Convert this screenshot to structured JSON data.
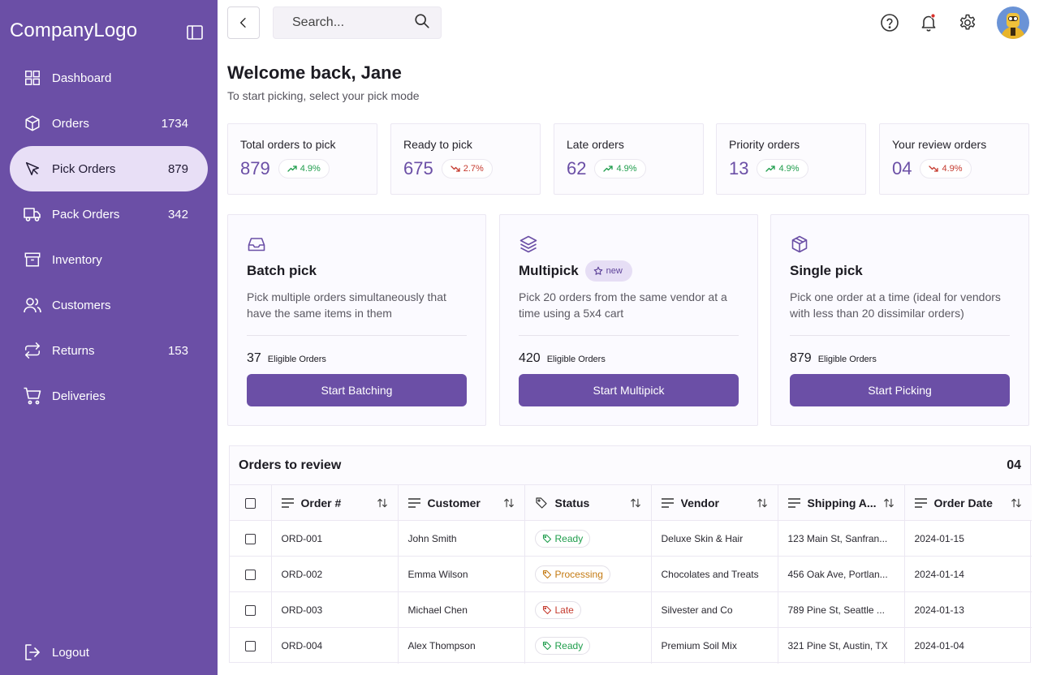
{
  "sidebar": {
    "brand": "CompanyLogo",
    "items": [
      {
        "label": "Dashboard",
        "count": "",
        "icon": "grid-icon"
      },
      {
        "label": "Orders",
        "count": "1734",
        "icon": "box-icon"
      },
      {
        "label": "Pick Orders",
        "count": "879",
        "icon": "cursor-icon",
        "active": true
      },
      {
        "label": "Pack Orders",
        "count": "342",
        "icon": "truck-icon"
      },
      {
        "label": "Inventory",
        "count": "",
        "icon": "archive-icon"
      },
      {
        "label": "Customers",
        "count": "",
        "icon": "users-icon"
      },
      {
        "label": "Returns",
        "count": "153",
        "icon": "repeat-icon"
      },
      {
        "label": "Deliveries",
        "count": "",
        "icon": "cart-icon"
      }
    ],
    "logout": "Logout"
  },
  "search": {
    "placeholder": "Search..."
  },
  "header": {
    "title": "Welcome back, Jane",
    "subtitle": "To start picking, select your pick mode"
  },
  "stats": [
    {
      "title": "Total orders to pick",
      "value": "879",
      "trend": "4.9%",
      "direction": "up"
    },
    {
      "title": "Ready to pick",
      "value": "675",
      "trend": "2.7%",
      "direction": "down"
    },
    {
      "title": "Late orders",
      "value": "62",
      "trend": "4.9%",
      "direction": "up"
    },
    {
      "title": "Priority orders",
      "value": "13",
      "trend": "4.9%",
      "direction": "up"
    },
    {
      "title": "Your review orders",
      "value": "04",
      "trend": "4.9%",
      "direction": "down"
    }
  ],
  "modes": [
    {
      "title": "Batch pick",
      "badge": "",
      "desc": "Pick multiple orders simultaneously that have the same items in them",
      "count": "37",
      "eligible_label": "Eligible Orders",
      "button": "Start Batching"
    },
    {
      "title": "Multipick",
      "badge": "new",
      "desc": "Pick 20 orders from the same vendor at a time using a 5x4 cart",
      "count": "420",
      "eligible_label": "Eligible Orders",
      "button": "Start Multipick"
    },
    {
      "title": "Single pick",
      "badge": "",
      "desc": "Pick one order at a time (ideal for vendors with less than 20 dissimilar orders)",
      "count": "879",
      "eligible_label": "Eligible Orders",
      "button": "Start Picking"
    }
  ],
  "table": {
    "title": "Orders to review",
    "count": "04",
    "columns": [
      "Order #",
      "Customer",
      "Status",
      "Vendor",
      "Shipping A...",
      "Order Date"
    ],
    "rows": [
      {
        "order": "ORD-001",
        "customer": "John Smith",
        "status": "Ready",
        "status_type": "ready",
        "vendor": "Deluxe Skin & Hair",
        "address": "123 Main St, Sanfran...",
        "date": "2024-01-15"
      },
      {
        "order": "ORD-002",
        "customer": "Emma Wilson",
        "status": "Processing",
        "status_type": "processing",
        "vendor": "Chocolates and Treats",
        "address": "456 Oak Ave, Portlan...",
        "date": "2024-01-14"
      },
      {
        "order": "ORD-003",
        "customer": "Michael Chen",
        "status": "Late",
        "status_type": "late",
        "vendor": "Silvester and Co",
        "address": "789 Pine St, Seattle ...",
        "date": "2024-01-13"
      },
      {
        "order": "ORD-004",
        "customer": "Alex Thompson",
        "status": "Ready",
        "status_type": "ready",
        "vendor": "Premium Soil Mix",
        "address": "321 Pine St, Austin, TX",
        "date": "2024-01-04"
      }
    ]
  },
  "colors": {
    "accent": "#6b4fa6",
    "active_nav": "#e8dff6",
    "ready": "#1f9d4c",
    "processing": "#c47a12",
    "late": "#c53a2e"
  }
}
